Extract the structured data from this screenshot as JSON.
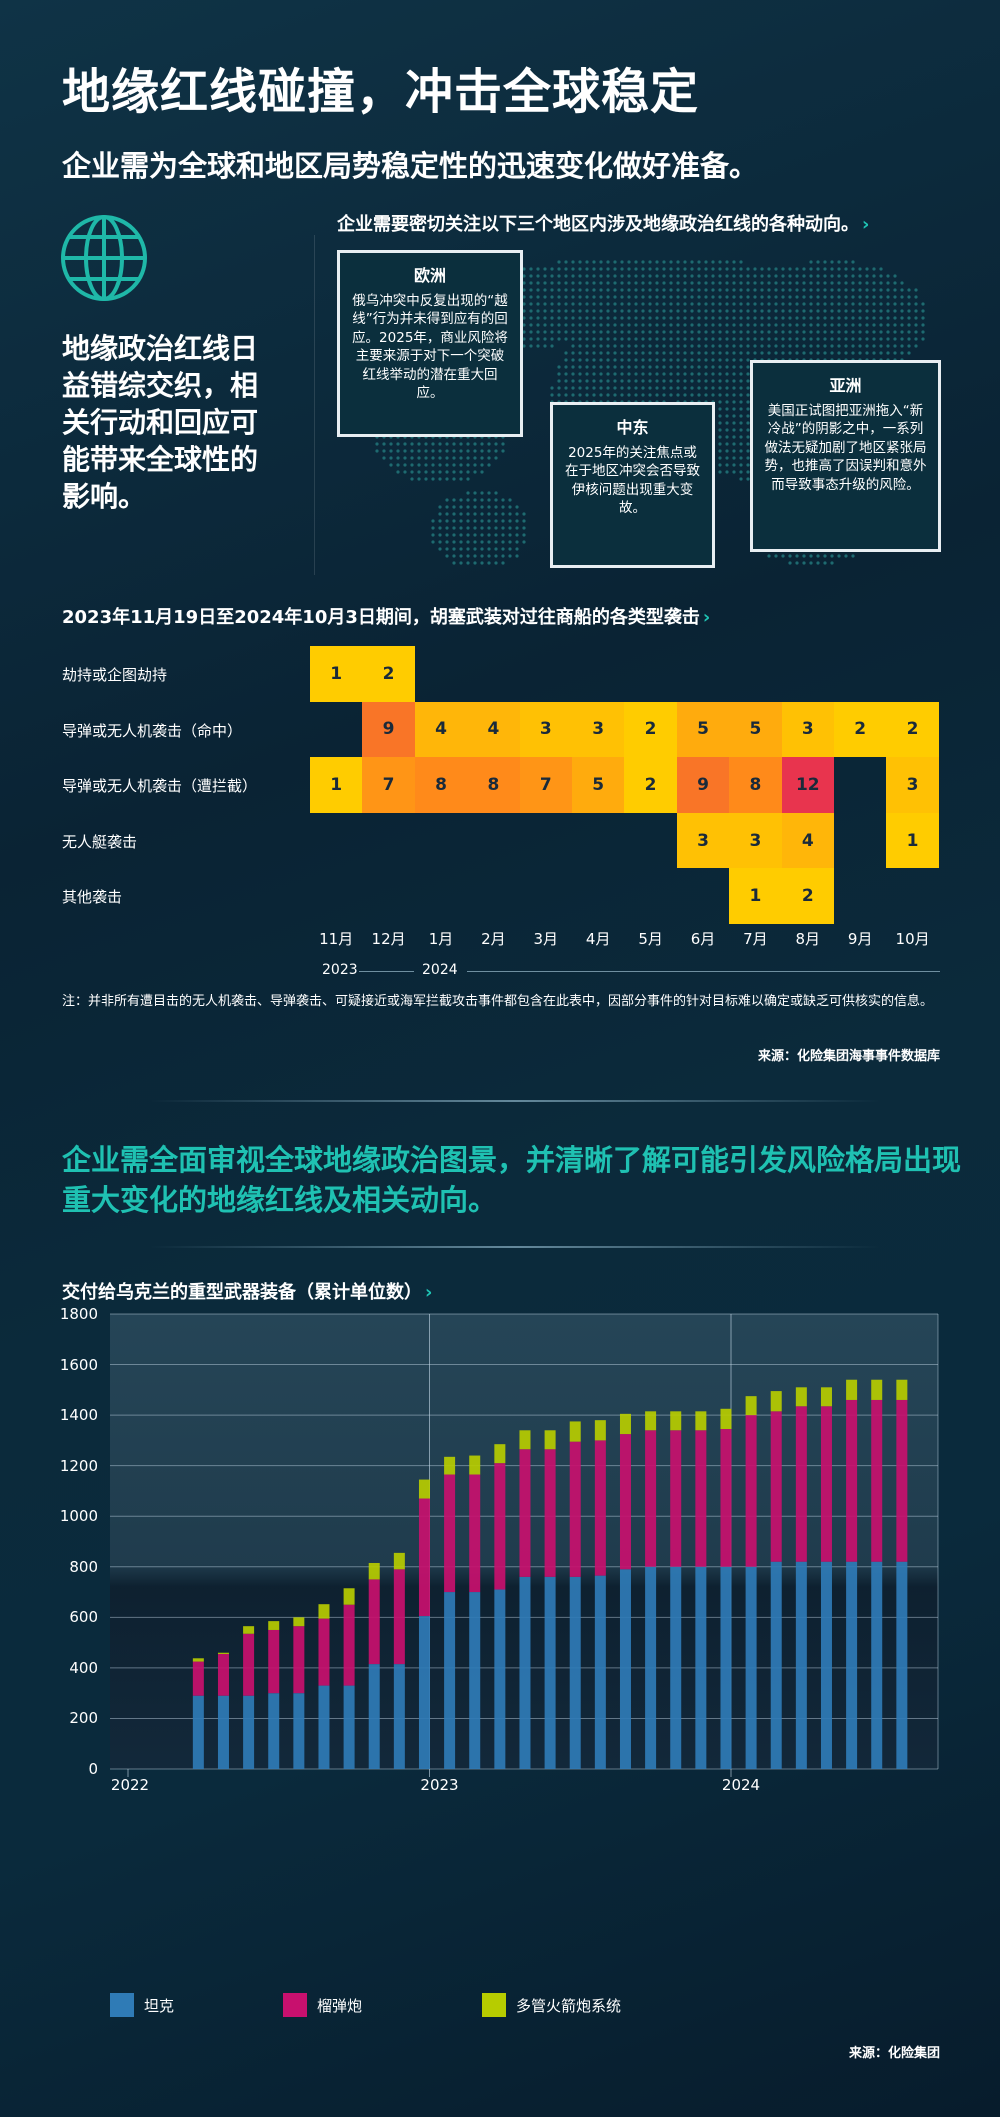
{
  "header": {
    "title": "地缘红线碰撞，冲击全球稳定",
    "subtitle": "企业需为全球和地区局势稳定性的迅速变化做好准备。"
  },
  "intro": {
    "icon": "globe-icon",
    "text": "地缘政治红线日益错综交织，相关行动和回应可能带来全球性的影响。",
    "map_heading": "企业需要密切关注以下三个地区内涉及地缘政治红线的各种动向。",
    "arrow": "›",
    "regions": [
      {
        "title": "欧洲",
        "text": "俄乌冲突中反复出现的“越线”行为并未得到应有的回应。2025年，商业风险将主要来源于对下一个突破红线举动的潜在重大回应。"
      },
      {
        "title": "中东",
        "text": "2025年的关注焦点或在于地区冲突会否导致伊核问题出现重大变故。"
      },
      {
        "title": "亚洲",
        "text": "美国正试图把亚洲拖入“新冷战”的阴影之中，一系列做法无疑加剧了地区紧张局势，也推高了因误判和意外而导致事态升级的风险。"
      }
    ]
  },
  "chart_data": [
    {
      "type": "heatmap",
      "title": "2023年11月19日至2024年10月3日期间，胡塞武装对过往商船的各类型袭击",
      "columns": [
        "11月",
        "12月",
        "1月",
        "2月",
        "3月",
        "4月",
        "5月",
        "6月",
        "7月",
        "8月",
        "9月",
        "10月"
      ],
      "year_labels": [
        "2023",
        "2024"
      ],
      "rows": [
        {
          "label": "劫持或企图劫持",
          "values": [
            1,
            2,
            null,
            null,
            null,
            null,
            null,
            null,
            null,
            null,
            null,
            null
          ]
        },
        {
          "label": "导弹或无人机袭击（命中）",
          "values": [
            null,
            9,
            4,
            4,
            3,
            3,
            2,
            5,
            5,
            3,
            2,
            2
          ]
        },
        {
          "label": "导弹或无人机袭击（遭拦截）",
          "values": [
            1,
            7,
            8,
            8,
            7,
            5,
            2,
            9,
            8,
            12,
            null,
            3
          ]
        },
        {
          "label": "无人艇袭击",
          "values": [
            null,
            null,
            null,
            null,
            null,
            null,
            null,
            3,
            3,
            4,
            null,
            1
          ]
        },
        {
          "label": "其他袭击",
          "values": [
            null,
            null,
            null,
            null,
            null,
            null,
            null,
            null,
            1,
            2,
            null,
            null
          ]
        }
      ],
      "colors": {
        "low": "#ffcc00",
        "mid": "#ff8a1a",
        "high": "#e8344e"
      },
      "note": "注：并非所有遭目击的无人机袭击、导弹袭击、可疑接近或海军拦截攻击事件都包含在此表中，因部分事件的针对目标难以确定或缺乏可供核实的信息。",
      "source": "来源：化险集团海事事件数据库"
    },
    {
      "type": "bar",
      "stacked": true,
      "title": "交付给乌克兰的重型武器装备（累计单位数）",
      "ylim": [
        0,
        1800
      ],
      "yticks": [
        0,
        200,
        400,
        600,
        800,
        1000,
        1200,
        1400,
        1600,
        1800
      ],
      "xticks": [
        "2022",
        "2023",
        "2024"
      ],
      "grid": true,
      "legend": "bottom",
      "x": [
        "2022-04",
        "2022-05",
        "2022-06",
        "2022-07",
        "2022-08",
        "2022-09",
        "2022-10",
        "2022-11",
        "2022-12",
        "2023-01",
        "2023-02",
        "2023-03",
        "2023-04",
        "2023-05",
        "2023-06",
        "2023-07",
        "2023-08",
        "2023-09",
        "2023-10",
        "2023-11",
        "2023-12",
        "2024-01",
        "2024-02",
        "2024-03",
        "2024-04",
        "2024-05",
        "2024-06",
        "2024-07",
        "2024-08"
      ],
      "series": [
        {
          "name": "坦克",
          "color": "#2f7bb6",
          "values": [
            290,
            290,
            290,
            300,
            300,
            330,
            330,
            415,
            415,
            605,
            700,
            700,
            710,
            760,
            760,
            760,
            765,
            790,
            800,
            800,
            800,
            800,
            800,
            820,
            820,
            820,
            820,
            820,
            820
          ]
        },
        {
          "name": "榴弹炮",
          "color": "#c8106e",
          "values": [
            135,
            165,
            245,
            250,
            265,
            265,
            320,
            335,
            375,
            465,
            465,
            465,
            500,
            505,
            505,
            535,
            535,
            535,
            540,
            540,
            540,
            545,
            600,
            595,
            615,
            615,
            640,
            640,
            640
          ]
        },
        {
          "name": "多管火箭炮系统",
          "color": "#b7cc00",
          "values": [
            13,
            5,
            30,
            35,
            35,
            57,
            65,
            65,
            65,
            75,
            70,
            75,
            75,
            75,
            75,
            80,
            80,
            80,
            75,
            75,
            75,
            80,
            75,
            80,
            75,
            75,
            80,
            80,
            80
          ]
        }
      ],
      "source": "来源：化险集团"
    }
  ],
  "section2": {
    "text": "企业需全面审视全球地缘政治图景，并清晰了解可能引发风险格局出现重大变化的地缘红线及相关动向。"
  }
}
